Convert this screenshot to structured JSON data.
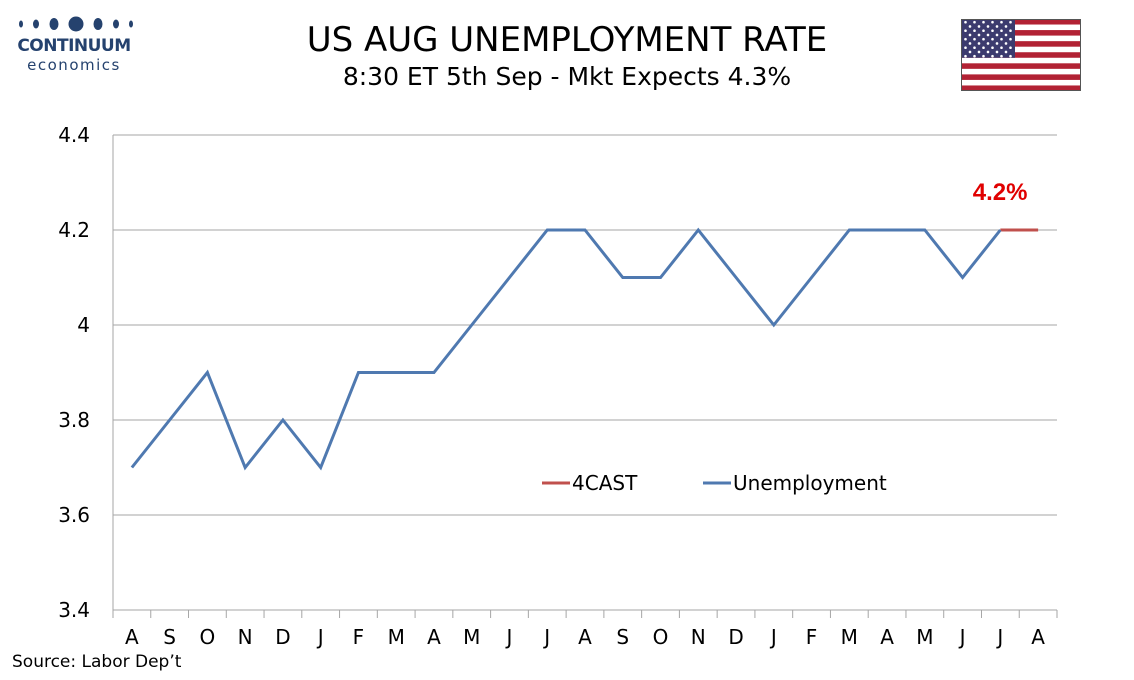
{
  "brand": {
    "name": "CONTINUUM",
    "tagline": "economics",
    "color": "#25426e"
  },
  "title": "US AUG UNEMPLOYMENT RATE",
  "subtitle": "8:30 ET 5th Sep - Mkt Expects 4.3%",
  "flag_icon": "us-flag-icon",
  "source": "Source: Labor Dep’t",
  "chart_data": {
    "type": "line",
    "categories": [
      "A",
      "S",
      "O",
      "N",
      "D",
      "J",
      "F",
      "M",
      "A",
      "M",
      "J",
      "J",
      "A",
      "S",
      "O",
      "N",
      "D",
      "J",
      "F",
      "M",
      "A",
      "M",
      "J",
      "J",
      "A"
    ],
    "series": [
      {
        "name": "Unemployment",
        "color": "#4f79b0",
        "values": [
          3.7,
          3.8,
          3.9,
          3.7,
          3.8,
          3.7,
          3.9,
          3.9,
          3.9,
          4.0,
          4.1,
          4.2,
          4.2,
          4.1,
          4.1,
          4.2,
          4.1,
          4.0,
          4.1,
          4.2,
          4.2,
          4.2,
          4.1,
          4.2,
          null
        ]
      },
      {
        "name": "4CAST",
        "color": "#c0504d",
        "values": [
          null,
          null,
          null,
          null,
          null,
          null,
          null,
          null,
          null,
          null,
          null,
          null,
          null,
          null,
          null,
          null,
          null,
          null,
          null,
          null,
          null,
          null,
          null,
          4.2,
          4.2
        ]
      }
    ],
    "ylim": [
      3.4,
      4.4
    ],
    "yticks": [
      3.4,
      3.6,
      3.8,
      4,
      4.2,
      4.4
    ],
    "ytick_labels": [
      "3.4",
      "3.6",
      "3.8",
      "4",
      "4.2",
      "4.4"
    ],
    "grid": true,
    "legend_order": [
      "4CAST",
      "Unemployment"
    ],
    "legend_position": "center",
    "annotation": {
      "text": "4.2%",
      "color": "#e00000"
    }
  }
}
